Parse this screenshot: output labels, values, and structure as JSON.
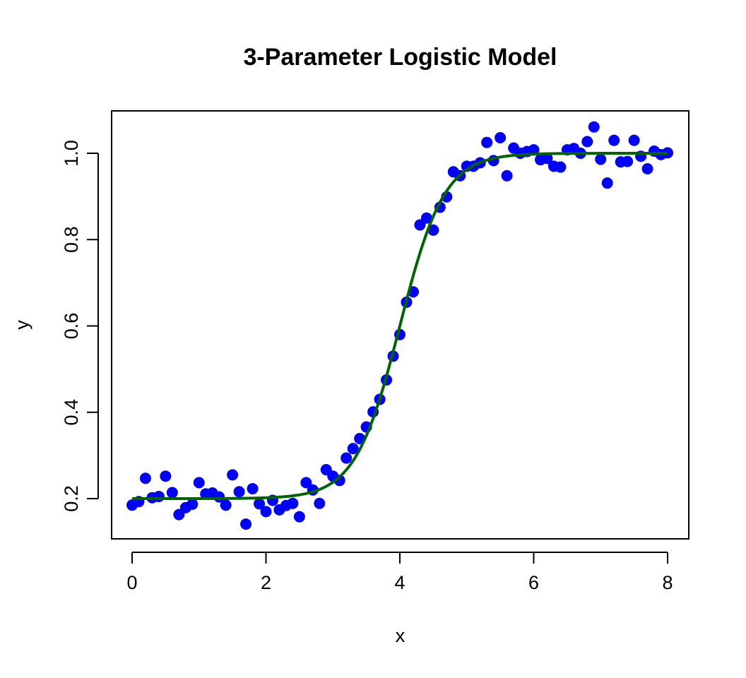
{
  "chart_data": {
    "type": "scatter",
    "title": "3-Parameter Logistic Model",
    "xlabel": "x",
    "ylabel": "y",
    "xlim": [
      0,
      8
    ],
    "ylim": [
      0.14,
      1.06
    ],
    "grid": false,
    "x_ticks": [
      0,
      2,
      4,
      6,
      8
    ],
    "y_ticks": [
      0.2,
      0.4,
      0.6,
      0.8,
      1.0
    ],
    "x_tick_labels": [
      "0",
      "2",
      "4",
      "6",
      "8"
    ],
    "y_tick_labels": [
      "0.2",
      "0.4",
      "0.6",
      "0.8",
      "1.0"
    ],
    "series": [
      {
        "kind": "points",
        "color": "#0000ff",
        "points": [
          [
            0.0,
            0.185
          ],
          [
            0.1,
            0.193
          ],
          [
            0.2,
            0.247
          ],
          [
            0.3,
            0.202
          ],
          [
            0.4,
            0.205
          ],
          [
            0.5,
            0.252
          ],
          [
            0.6,
            0.214
          ],
          [
            0.7,
            0.163
          ],
          [
            0.8,
            0.179
          ],
          [
            0.9,
            0.187
          ],
          [
            1.0,
            0.237
          ],
          [
            1.1,
            0.211
          ],
          [
            1.2,
            0.213
          ],
          [
            1.3,
            0.204
          ],
          [
            1.4,
            0.185
          ],
          [
            1.5,
            0.255
          ],
          [
            1.6,
            0.216
          ],
          [
            1.7,
            0.141
          ],
          [
            1.8,
            0.223
          ],
          [
            1.9,
            0.188
          ],
          [
            2.0,
            0.17
          ],
          [
            2.1,
            0.196
          ],
          [
            2.2,
            0.174
          ],
          [
            2.3,
            0.184
          ],
          [
            2.4,
            0.189
          ],
          [
            2.5,
            0.158
          ],
          [
            2.6,
            0.237
          ],
          [
            2.7,
            0.22
          ],
          [
            2.8,
            0.189
          ],
          [
            2.9,
            0.267
          ],
          [
            3.0,
            0.252
          ],
          [
            3.1,
            0.242
          ],
          [
            3.2,
            0.294
          ],
          [
            3.3,
            0.316
          ],
          [
            3.4,
            0.339
          ],
          [
            3.5,
            0.366
          ],
          [
            3.6,
            0.401
          ],
          [
            3.7,
            0.43
          ],
          [
            3.8,
            0.475
          ],
          [
            3.9,
            0.53
          ],
          [
            4.0,
            0.58
          ],
          [
            4.1,
            0.655
          ],
          [
            4.2,
            0.679
          ],
          [
            4.3,
            0.834
          ],
          [
            4.4,
            0.85
          ],
          [
            4.5,
            0.822
          ],
          [
            4.6,
            0.875
          ],
          [
            4.7,
            0.899
          ],
          [
            4.8,
            0.957
          ],
          [
            4.9,
            0.948
          ],
          [
            5.0,
            0.97
          ],
          [
            5.1,
            0.97
          ],
          [
            5.2,
            0.978
          ],
          [
            5.3,
            1.025
          ],
          [
            5.4,
            0.983
          ],
          [
            5.5,
            1.036
          ],
          [
            5.6,
            0.948
          ],
          [
            5.7,
            1.012
          ],
          [
            5.8,
            1.0
          ],
          [
            5.9,
            1.004
          ],
          [
            6.0,
            1.008
          ],
          [
            6.1,
            0.985
          ],
          [
            6.2,
            0.988
          ],
          [
            6.3,
            0.97
          ],
          [
            6.4,
            0.968
          ],
          [
            6.5,
            1.008
          ],
          [
            6.6,
            1.011
          ],
          [
            6.7,
            1.0
          ],
          [
            6.8,
            1.027
          ],
          [
            6.9,
            1.061
          ],
          [
            7.0,
            0.986
          ],
          [
            7.1,
            0.931
          ],
          [
            7.2,
            1.03
          ],
          [
            7.3,
            0.98
          ],
          [
            7.4,
            0.981
          ],
          [
            7.5,
            1.03
          ],
          [
            7.6,
            0.993
          ],
          [
            7.7,
            0.964
          ],
          [
            7.8,
            1.005
          ],
          [
            7.9,
            0.997
          ],
          [
            8.0,
            1.001
          ]
        ]
      },
      {
        "kind": "fitted-curve",
        "color": "#006400",
        "model": "logistic",
        "lower_asymptote": 0.2,
        "upper_asymptote": 1.0,
        "midpoint": 4.0,
        "slope": 3.0
      }
    ]
  }
}
